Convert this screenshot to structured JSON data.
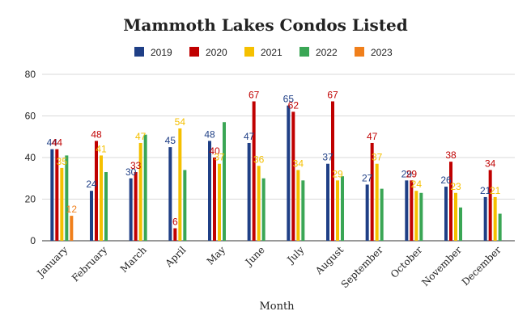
{
  "chart_data": {
    "type": "bar",
    "title": "Mammoth Lakes Condos Listed",
    "xlabel": "Month",
    "ylabel": "",
    "ylim": [
      0,
      80
    ],
    "yticks": [
      "0",
      "20",
      "40",
      "60",
      "80"
    ],
    "grid": true,
    "legend_position": "top",
    "categories": [
      "January",
      "February",
      "March",
      "April",
      "May",
      "June",
      "July",
      "August",
      "September",
      "October",
      "November",
      "December"
    ],
    "series": [
      {
        "name": "2019",
        "color": "#1f3f86",
        "values": [
          44,
          24,
          30,
          45,
          48,
          47,
          65,
          37,
          27,
          29,
          26,
          21
        ]
      },
      {
        "name": "2020",
        "color": "#c00000",
        "values": [
          44,
          48,
          33,
          6,
          40,
          67,
          62,
          67,
          47,
          29,
          38,
          34
        ]
      },
      {
        "name": "2021",
        "color": "#f5c000",
        "values": [
          35,
          41,
          47,
          54,
          37,
          36,
          34,
          29,
          37,
          24,
          23,
          21
        ]
      },
      {
        "name": "2022",
        "color": "#3aa655",
        "values": [
          41,
          33,
          51,
          34,
          57,
          30,
          29,
          31,
          25,
          23,
          16,
          13
        ]
      },
      {
        "name": "2023",
        "color": "#f07f1b",
        "values": [
          12,
          null,
          null,
          null,
          null,
          null,
          null,
          null,
          null,
          null,
          null,
          null
        ]
      }
    ],
    "data_labels_shown_for": [
      "2019",
      "2020",
      "2021"
    ]
  }
}
